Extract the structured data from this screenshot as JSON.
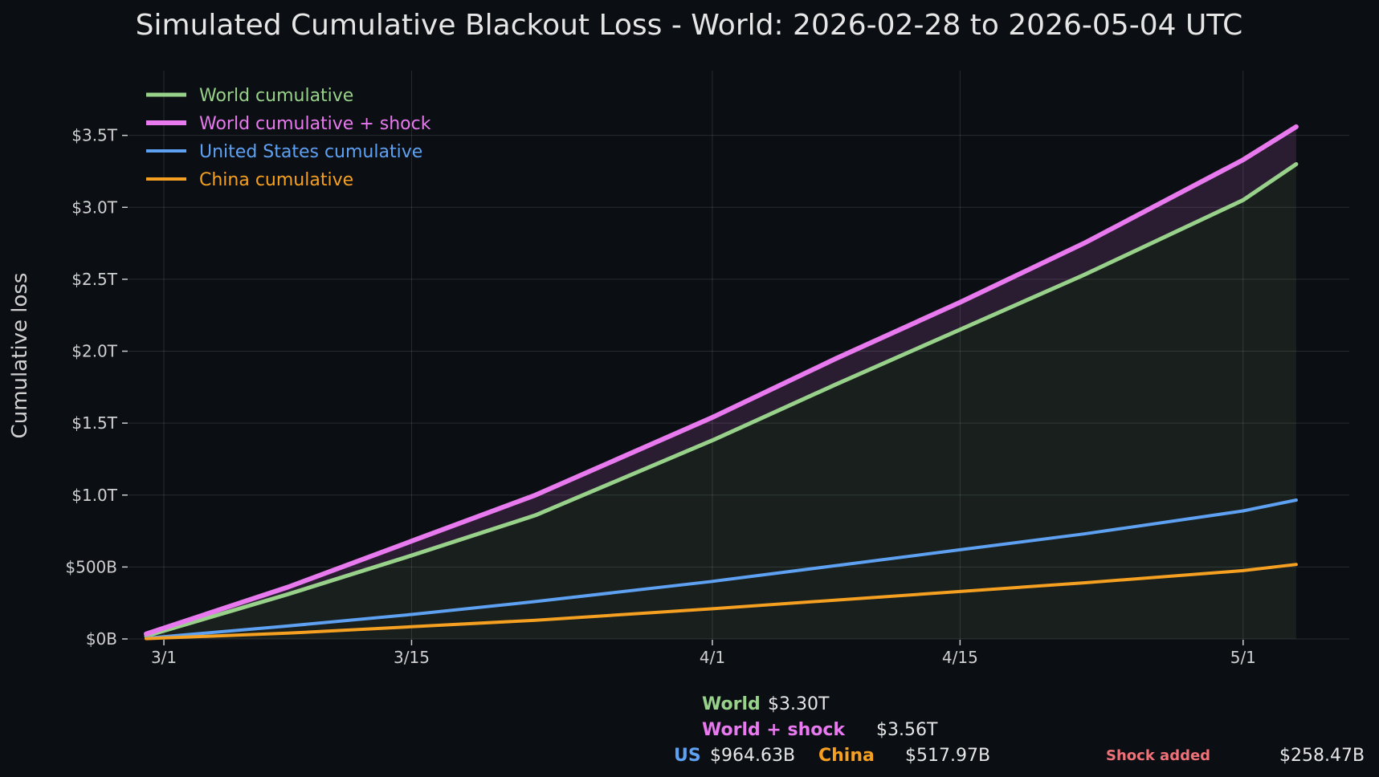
{
  "chart_data": {
    "type": "line",
    "title": "Simulated Cumulative Blackout Loss - World: 2026-02-28 to 2026-05-04 UTC",
    "ylabel": "Cumulative loss",
    "ylim": [
      0,
      3.95
    ],
    "xlim": [
      "2026-02-27",
      "2026-05-07"
    ],
    "x_ticks": [
      {
        "date": "2026-03-01",
        "label": "3/1"
      },
      {
        "date": "2026-03-15",
        "label": "3/15"
      },
      {
        "date": "2026-04-01",
        "label": "4/1"
      },
      {
        "date": "2026-04-15",
        "label": "4/15"
      },
      {
        "date": "2026-05-01",
        "label": "5/1"
      }
    ],
    "y_ticks": [
      {
        "value": 0,
        "label": "$0B"
      },
      {
        "value": 0.5,
        "label": "$500B"
      },
      {
        "value": 1.0,
        "label": "$1.0T"
      },
      {
        "value": 1.5,
        "label": "$1.5T"
      },
      {
        "value": 2.0,
        "label": "$2.0T"
      },
      {
        "value": 2.5,
        "label": "$2.5T"
      },
      {
        "value": 3.0,
        "label": "$3.0T"
      },
      {
        "value": 3.5,
        "label": "$3.5T"
      }
    ],
    "grid": true,
    "legend_position": "top-left",
    "x": [
      "2026-02-28",
      "2026-03-08",
      "2026-03-15",
      "2026-03-22",
      "2026-04-01",
      "2026-04-08",
      "2026-04-15",
      "2026-04-22",
      "2026-05-01",
      "2026-05-04"
    ],
    "series": [
      {
        "name": "World cumulative",
        "color": "#98d18a",
        "values": [
          0.02,
          0.31,
          0.58,
          0.86,
          1.38,
          1.77,
          2.15,
          2.53,
          3.05,
          3.3
        ]
      },
      {
        "name": "World cumulative + shock",
        "color": "#e879ef",
        "values": [
          0.035,
          0.36,
          0.68,
          1.0,
          1.54,
          1.95,
          2.34,
          2.75,
          3.33,
          3.56
        ]
      },
      {
        "name": "United States cumulative",
        "color": "#5ea1f2",
        "values": [
          0.005,
          0.09,
          0.17,
          0.26,
          0.4,
          0.51,
          0.62,
          0.73,
          0.89,
          0.965
        ]
      },
      {
        "name": "China cumulative",
        "color": "#f5a020",
        "values": [
          0.002,
          0.04,
          0.085,
          0.13,
          0.21,
          0.27,
          0.33,
          0.39,
          0.475,
          0.518
        ]
      }
    ]
  },
  "summary": {
    "world": {
      "label": "World",
      "value": "$3.30T"
    },
    "world_shock": {
      "label": "World + shock",
      "value": "$3.56T"
    },
    "us": {
      "label": "US",
      "value": "$964.63B"
    },
    "china": {
      "label": "China",
      "value": "$517.97B"
    },
    "shock_added": {
      "label": "Shock added",
      "value": "$258.47B",
      "color": "#f07178"
    }
  }
}
